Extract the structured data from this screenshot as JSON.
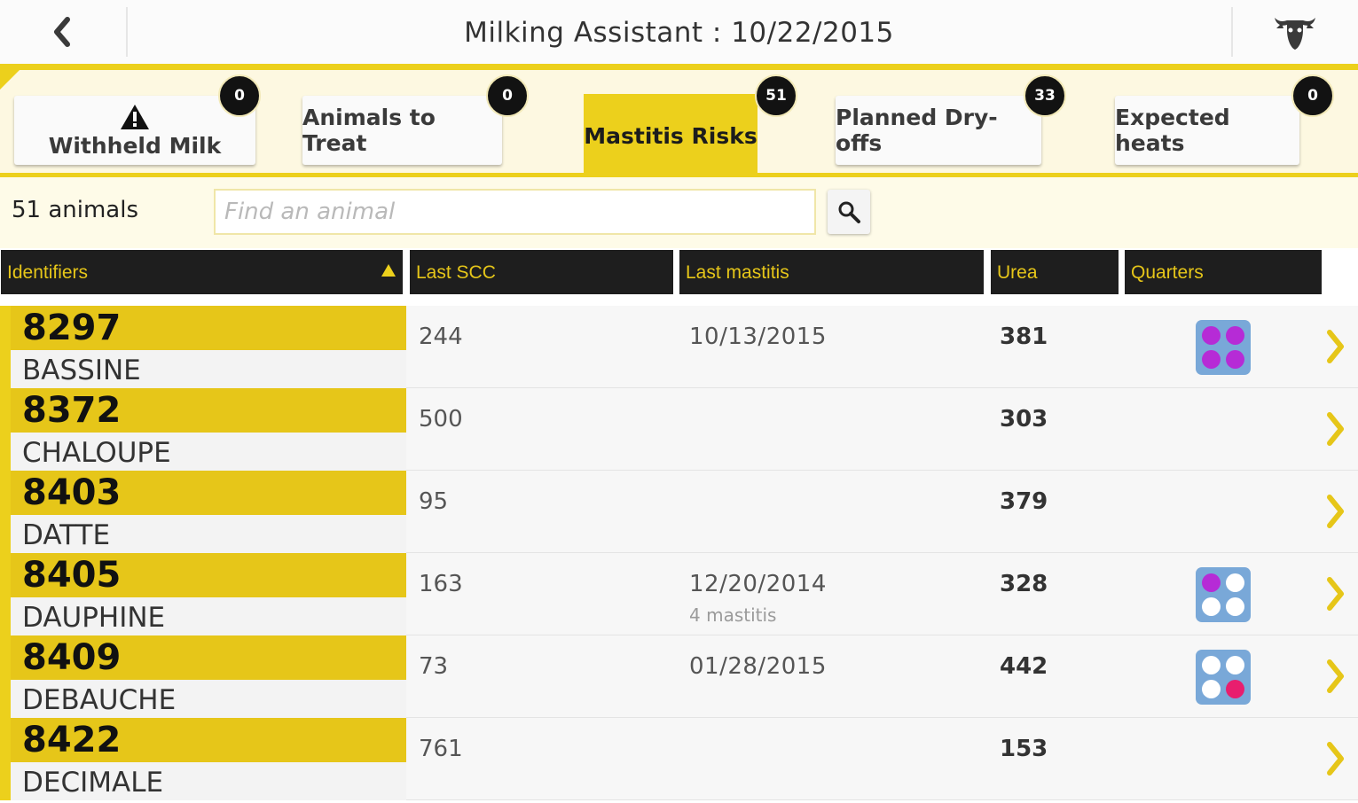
{
  "header": {
    "title": "Milking Assistant : 10/22/2015",
    "back_icon": "chevron-left-icon",
    "menu_icon": "bull-head-icon"
  },
  "tabs": [
    {
      "label": "Withheld Milk",
      "badge": "0",
      "icon": "warning-icon",
      "active": false
    },
    {
      "label": "Animals to Treat",
      "badge": "0",
      "active": false
    },
    {
      "label": "Mastitis Risks",
      "badge": "51",
      "active": true
    },
    {
      "label": "Planned Dry-offs",
      "badge": "33",
      "active": false
    },
    {
      "label": "Expected heats",
      "badge": "0",
      "active": false
    }
  ],
  "search": {
    "count": "51 animals",
    "placeholder": "Find an animal",
    "button_icon": "search-icon"
  },
  "table": {
    "columns": [
      "Identifiers",
      "Last SCC",
      "Last mastitis",
      "Urea",
      "Quarters"
    ],
    "sort_column": "Identifiers",
    "sort_direction": "ascending",
    "rows": [
      {
        "id": "8297",
        "name": "BASSINE",
        "scc": "244",
        "last_mastitis": "10/13/2015",
        "mastitis_count": "",
        "urea": "381",
        "quarters": [
          "on",
          "on",
          "on",
          "on"
        ]
      },
      {
        "id": "8372",
        "name": "CHALOUPE",
        "scc": "500",
        "last_mastitis": "",
        "mastitis_count": "",
        "urea": "303",
        "quarters": null
      },
      {
        "id": "8403",
        "name": "DATTE",
        "scc": "95",
        "last_mastitis": "",
        "mastitis_count": "",
        "urea": "379",
        "quarters": null
      },
      {
        "id": "8405",
        "name": "DAUPHINE",
        "scc": "163",
        "last_mastitis": "12/20/2014",
        "mastitis_count": "4 mastitis",
        "urea": "328",
        "quarters": [
          "on",
          "off",
          "off",
          "off"
        ]
      },
      {
        "id": "8409",
        "name": "DEBAUCHE",
        "scc": "73",
        "last_mastitis": "01/28/2015",
        "mastitis_count": "",
        "urea": "442",
        "quarters": [
          "off",
          "off",
          "off",
          "red"
        ]
      },
      {
        "id": "8422",
        "name": "DECIMALE",
        "scc": "761",
        "last_mastitis": "",
        "mastitis_count": "",
        "urea": "153",
        "quarters": null
      }
    ]
  },
  "colors": {
    "accent_yellow": "#ecd01c",
    "header_dark": "#1e1e1e",
    "quarter_bg": "#79a8d8",
    "quarter_on": "#b62bd6",
    "quarter_red": "#e81e6e"
  }
}
